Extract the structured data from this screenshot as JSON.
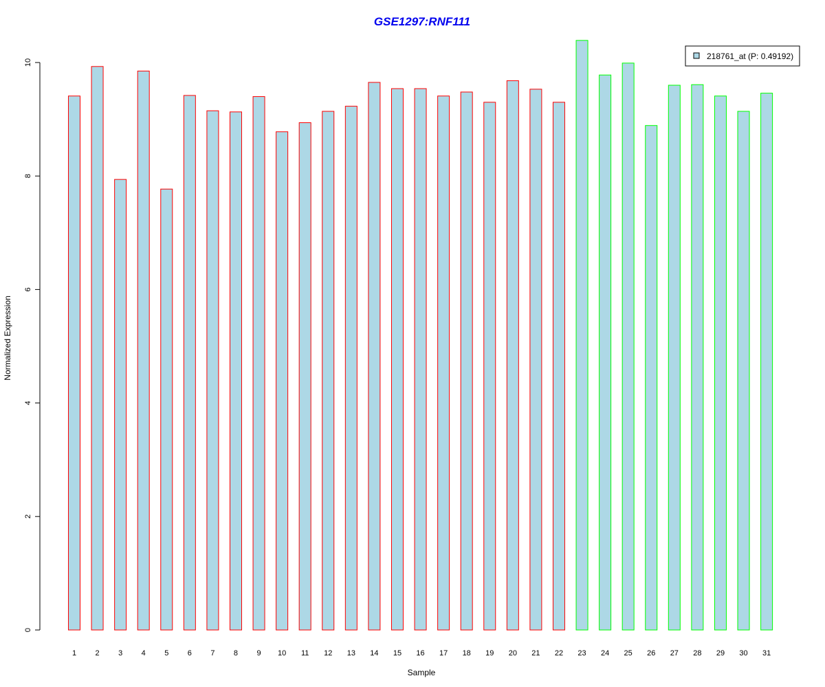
{
  "chart_data": {
    "type": "bar",
    "title": "GSE1297:RNF111",
    "xlabel": "Sample",
    "ylabel": "Normalized Expression",
    "ylim": [
      0,
      10.4
    ],
    "yticks": [
      0,
      2,
      4,
      6,
      8,
      10
    ],
    "grid": false,
    "legend_position": "top-right",
    "categories": [
      "1",
      "2",
      "3",
      "4",
      "5",
      "6",
      "7",
      "8",
      "9",
      "10",
      "11",
      "12",
      "13",
      "14",
      "15",
      "16",
      "17",
      "18",
      "19",
      "20",
      "21",
      "22",
      "23",
      "24",
      "25",
      "26",
      "27",
      "28",
      "29",
      "30",
      "31"
    ],
    "series": [
      {
        "name": "218761_at (P: 0.49192)",
        "values": [
          9.41,
          9.93,
          7.94,
          9.85,
          7.77,
          9.42,
          9.15,
          9.13,
          9.4,
          8.78,
          8.94,
          9.14,
          9.23,
          9.65,
          9.54,
          9.54,
          9.41,
          9.48,
          9.3,
          9.68,
          9.53,
          9.3,
          10.39,
          9.78,
          9.99,
          8.89,
          9.6,
          9.61,
          9.41,
          9.14,
          9.46
        ]
      }
    ],
    "bar_group": [
      "red",
      "red",
      "red",
      "red",
      "red",
      "red",
      "red",
      "red",
      "red",
      "red",
      "red",
      "red",
      "red",
      "red",
      "red",
      "red",
      "red",
      "red",
      "red",
      "red",
      "red",
      "red",
      "green",
      "green",
      "green",
      "green",
      "green",
      "green",
      "green",
      "green",
      "green"
    ]
  },
  "colors": {
    "title": "#0000ee",
    "bar_fill": "#add8e6",
    "border_red": "#ff0000",
    "border_green": "#00ff00",
    "axis": "#000000"
  }
}
